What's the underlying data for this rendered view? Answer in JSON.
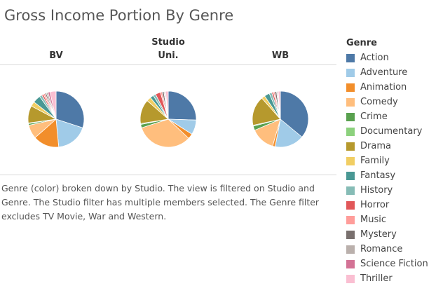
{
  "title": "Gross Income Portion By Genre",
  "studio_field_label": "Studio",
  "caption": "Genre (color) broken down by Studio. The view is filtered on Studio and Genre. The Studio filter has multiple members selected. The Genre filter excludes TV Movie, War and Western.",
  "legend": {
    "title": "Genre",
    "items": [
      {
        "label": "Action",
        "color": "#4e79a7"
      },
      {
        "label": "Adventure",
        "color": "#a0cbe8"
      },
      {
        "label": "Animation",
        "color": "#f28e2b"
      },
      {
        "label": "Comedy",
        "color": "#ffbe7d"
      },
      {
        "label": "Crime",
        "color": "#59a14f"
      },
      {
        "label": "Documentary",
        "color": "#8cd17d"
      },
      {
        "label": "Drama",
        "color": "#b6992d"
      },
      {
        "label": "Family",
        "color": "#f1ce63"
      },
      {
        "label": "Fantasy",
        "color": "#499894"
      },
      {
        "label": "History",
        "color": "#86bcb6"
      },
      {
        "label": "Horror",
        "color": "#e15759"
      },
      {
        "label": "Music",
        "color": "#ff9d9a"
      },
      {
        "label": "Mystery",
        "color": "#79706e"
      },
      {
        "label": "Romance",
        "color": "#bab0ac"
      },
      {
        "label": "Science Fiction",
        "color": "#d37295"
      },
      {
        "label": "Thriller",
        "color": "#fabfd2"
      }
    ]
  },
  "chart_data": {
    "type": "pie",
    "title": "Gross Income Portion By Genre",
    "facet_field": "Studio",
    "color_field": "Genre",
    "genres": [
      "Action",
      "Adventure",
      "Animation",
      "Comedy",
      "Crime",
      "Documentary",
      "Drama",
      "Family",
      "Fantasy",
      "History",
      "Horror",
      "Music",
      "Mystery",
      "Romance",
      "Science Fiction",
      "Thriller"
    ],
    "legend_position": "right",
    "pies": [
      {
        "studio": "BV",
        "values": [
          30.0,
          18.5,
          15.0,
          8.0,
          1.0,
          0.3,
          10.0,
          2.7,
          4.5,
          1.5,
          1.0,
          1.0,
          0.8,
          1.0,
          1.2,
          3.5
        ]
      },
      {
        "studio": "Uni.",
        "values": [
          25.5,
          8.5,
          3.0,
          33.0,
          2.0,
          0.5,
          14.0,
          2.5,
          2.0,
          1.5,
          3.0,
          1.0,
          1.0,
          0.5,
          0.5,
          1.5
        ]
      },
      {
        "studio": "WB",
        "values": [
          36.0,
          17.0,
          1.5,
          14.0,
          2.5,
          0.5,
          17.0,
          2.0,
          3.0,
          1.5,
          1.0,
          0.8,
          1.0,
          0.5,
          0.5,
          1.2
        ]
      }
    ]
  }
}
